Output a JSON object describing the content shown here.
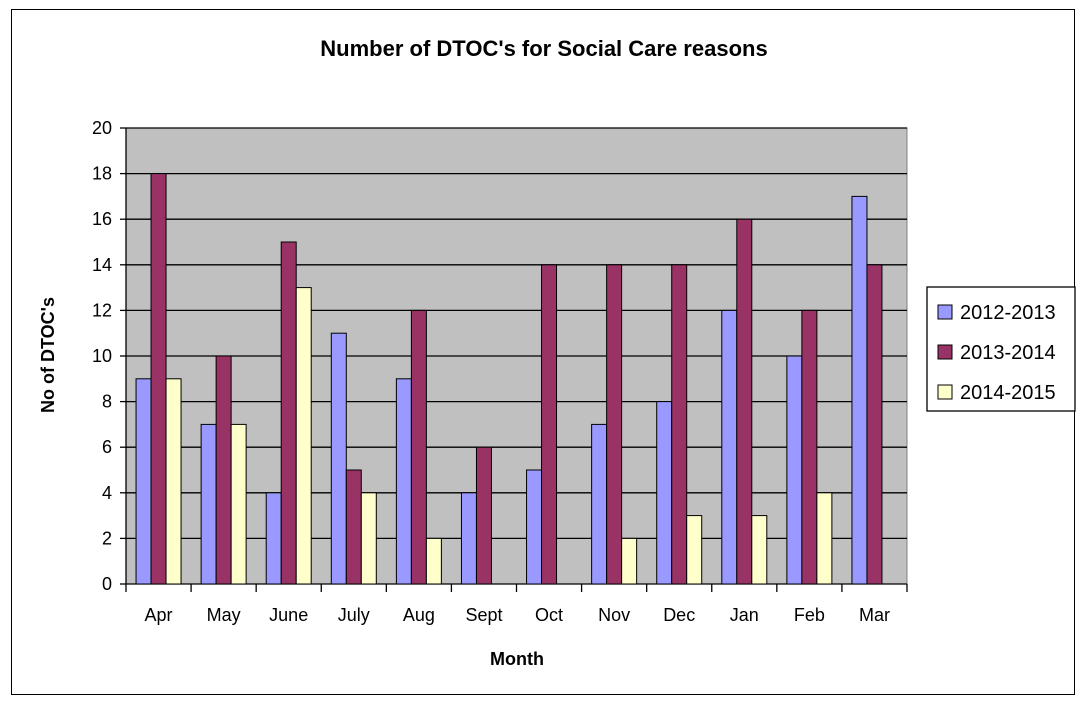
{
  "chart_data": {
    "type": "bar",
    "title": "Number of DTOC's for Social Care reasons",
    "xlabel": "Month",
    "ylabel": "No of DTOC's",
    "categories": [
      "Apr",
      "May",
      "June",
      "July",
      "Aug",
      "Sept",
      "Oct",
      "Nov",
      "Dec",
      "Jan",
      "Feb",
      "Mar"
    ],
    "ylim": [
      0,
      20
    ],
    "yticks": [
      0,
      2,
      4,
      6,
      8,
      10,
      12,
      14,
      16,
      18,
      20
    ],
    "grid": true,
    "legend_position": "right",
    "plot_background": "#c0c0c0",
    "series": [
      {
        "name": "2012-2013",
        "color": "#9999ff",
        "values": [
          9,
          7,
          4,
          11,
          9,
          4,
          5,
          7,
          8,
          12,
          10,
          17
        ]
      },
      {
        "name": "2013-2014",
        "color": "#993366",
        "values": [
          18,
          10,
          15,
          5,
          12,
          6,
          14,
          14,
          14,
          16,
          12,
          14
        ]
      },
      {
        "name": "2014-2015",
        "color": "#ffffcc",
        "values": [
          9,
          7,
          13,
          4,
          2,
          null,
          null,
          2,
          3,
          3,
          4,
          null
        ]
      }
    ]
  }
}
